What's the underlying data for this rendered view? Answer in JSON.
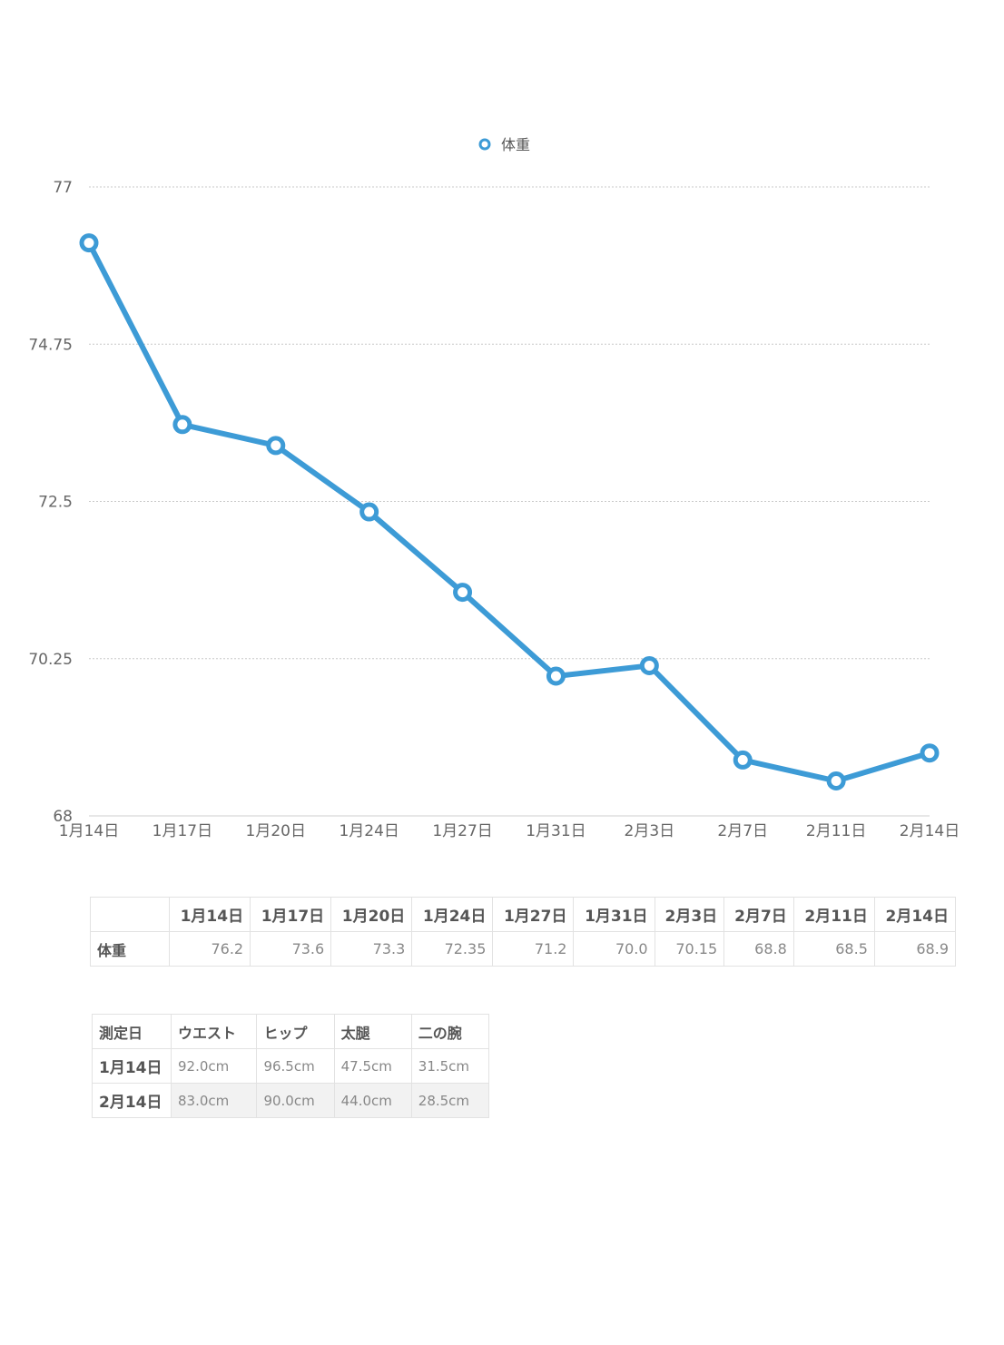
{
  "chart_data": {
    "type": "line",
    "categories": [
      "1月14日",
      "1月17日",
      "1月20日",
      "1月24日",
      "1月27日",
      "1月31日",
      "2月3日",
      "2月7日",
      "2月11日",
      "2月14日"
    ],
    "series": [
      {
        "name": "体重",
        "values": [
          76.2,
          73.6,
          73.3,
          72.35,
          71.2,
          70.0,
          70.15,
          68.8,
          68.5,
          68.9
        ]
      }
    ],
    "yticks": [
      "77",
      "74.75",
      "72.5",
      "70.25",
      "68"
    ],
    "ylim": [
      68,
      77
    ],
    "grid": true,
    "legend_position": "top-center",
    "line_color": "#3d9bd6"
  },
  "weight_table": {
    "row_label": "体重",
    "columns": [
      "1月14日",
      "1月17日",
      "1月20日",
      "1月24日",
      "1月27日",
      "1月31日",
      "2月3日",
      "2月7日",
      "2月11日",
      "2月14日"
    ],
    "values": [
      "76.2",
      "73.6",
      "73.3",
      "72.35",
      "71.2",
      "70.0",
      "70.15",
      "68.8",
      "68.5",
      "68.9"
    ]
  },
  "measure_table": {
    "headers": [
      "測定日",
      "ウエスト",
      "ヒップ",
      "太腿",
      "二の腕"
    ],
    "rows": [
      {
        "date": "1月14日",
        "values": [
          "92.0cm",
          "96.5cm",
          "47.5cm",
          "31.5cm"
        ]
      },
      {
        "date": "2月14日",
        "values": [
          "83.0cm",
          "90.0cm",
          "44.0cm",
          "28.5cm"
        ]
      }
    ]
  }
}
